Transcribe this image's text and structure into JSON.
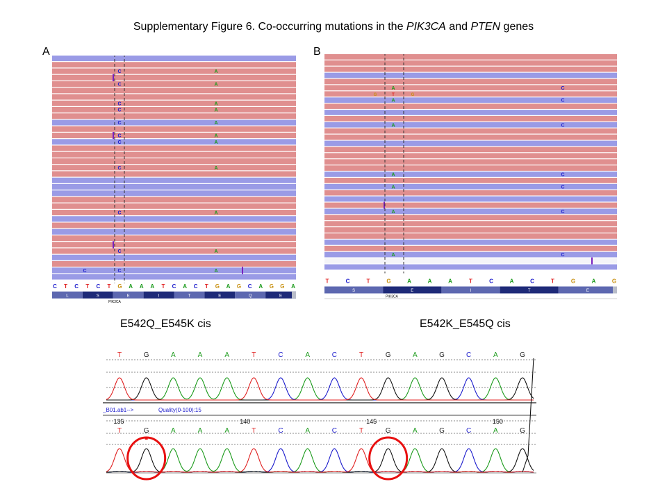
{
  "figure": {
    "title_prefix": "Supplementary Figure 6. Co-occurring mutations in the ",
    "gene1": "PIK3CA",
    "title_mid": " and ",
    "gene2": "PTEN",
    "title_suffix": " genes"
  },
  "panel_a": {
    "letter": "A",
    "caption": "E542Q_E545K cis",
    "mutant_base_left": "C",
    "mutant_base_right": "A",
    "reads": [
      {
        "c": "b"
      },
      {
        "c": "r"
      },
      {
        "c": "r",
        "L": "C",
        "R": "A"
      },
      {
        "c": "r",
        "i": true
      },
      {
        "c": "r",
        "L": "C",
        "R": "A"
      },
      {
        "c": "r"
      },
      {
        "c": "r"
      },
      {
        "c": "r",
        "L": "C",
        "R": "A"
      },
      {
        "c": "r",
        "L": "C",
        "R": "A"
      },
      {
        "c": "r"
      },
      {
        "c": "b",
        "L": "C",
        "R": "A"
      },
      {
        "c": "r"
      },
      {
        "c": "r",
        "i": true,
        "L": "C",
        "R": "A"
      },
      {
        "c": "b",
        "L": "C",
        "R": "A"
      },
      {
        "c": "r"
      },
      {
        "c": "r"
      },
      {
        "c": "r"
      },
      {
        "c": "r",
        "L": "C",
        "R": "A"
      },
      {
        "c": "r"
      },
      {
        "c": "b"
      },
      {
        "c": "b"
      },
      {
        "c": "b"
      },
      {
        "c": "r"
      },
      {
        "c": "r"
      },
      {
        "c": "r",
        "L": "C",
        "R": "A"
      },
      {
        "c": "b"
      },
      {
        "c": "r"
      },
      {
        "c": "b"
      },
      {
        "c": "r"
      },
      {
        "c": "r",
        "i": true
      },
      {
        "c": "r",
        "L": "C",
        "R": "A"
      },
      {
        "c": "b"
      },
      {
        "c": "r"
      },
      {
        "c": "b",
        "L": "C",
        "R": "A",
        "X": "C",
        "I2": true
      },
      {
        "c": "b"
      }
    ],
    "sequence": [
      "C",
      "T",
      "C",
      "T",
      "C",
      "T",
      "G",
      "A",
      "A",
      "A",
      "T",
      "C",
      "A",
      "C",
      "T",
      "G",
      "A",
      "G",
      "C",
      "A",
      "G",
      "G",
      "A"
    ],
    "amino_acids": [
      "L",
      "S",
      "E",
      "I",
      "T",
      "E",
      "Q",
      "E"
    ],
    "gene_label": "PIK3CA"
  },
  "panel_b": {
    "letter": "B",
    "caption": "E542K_E545Q cis",
    "mutant_base_left": "A",
    "mutant_base_right": "C",
    "reads": [
      {
        "c": "r"
      },
      {
        "c": "r"
      },
      {
        "c": "r"
      },
      {
        "c": "b"
      },
      {
        "c": "r"
      },
      {
        "c": "r",
        "L": "A",
        "R": "C"
      },
      {
        "c": "r",
        "G": true
      },
      {
        "c": "b",
        "L": "A",
        "R": "C"
      },
      {
        "c": "r"
      },
      {
        "c": "b"
      },
      {
        "c": "r"
      },
      {
        "c": "b",
        "L": "A",
        "R": "C"
      },
      {
        "c": "r"
      },
      {
        "c": "r"
      },
      {
        "c": "b"
      },
      {
        "c": "r"
      },
      {
        "c": "r"
      },
      {
        "c": "r"
      },
      {
        "c": "r"
      },
      {
        "c": "b",
        "L": "A",
        "R": "C"
      },
      {
        "c": "r"
      },
      {
        "c": "b",
        "L": "A",
        "R": "C"
      },
      {
        "c": "r"
      },
      {
        "c": "b"
      },
      {
        "c": "r",
        "i": true
      },
      {
        "c": "b",
        "L": "A",
        "R": "C"
      },
      {
        "c": "r"
      },
      {
        "c": "r"
      },
      {
        "c": "r"
      },
      {
        "c": "r"
      },
      {
        "c": "b"
      },
      {
        "c": "r"
      },
      {
        "c": "b",
        "L": "A",
        "R": "C"
      },
      {
        "c": "w",
        "I2": true
      },
      {
        "c": "b"
      }
    ],
    "sequence": [
      "T",
      "C",
      "T",
      "G",
      "A",
      "A",
      "A",
      "T",
      "C",
      "A",
      "C",
      "T",
      "G",
      "A",
      "G"
    ],
    "amino_acids": [
      "S",
      "E",
      "I",
      "T",
      "E"
    ],
    "gene_label": "PIK3CA"
  },
  "chromatogram": {
    "top_bases": [
      "T",
      "G",
      "A",
      "A",
      "A",
      "T",
      "C",
      "A",
      "C",
      "T",
      "G",
      "A",
      "G",
      "C",
      "A",
      "G"
    ],
    "file_label": "_B01.ab1-->",
    "quality_label": "Quality(0-100):15",
    "positions": [
      {
        "label": "135",
        "at": 0.0
      },
      {
        "label": "140",
        "at": 0.3
      },
      {
        "label": "145",
        "at": 0.6
      },
      {
        "label": "150",
        "at": 0.9
      }
    ],
    "bottom_bases": [
      "T",
      "G",
      "A",
      "A",
      "A",
      "T",
      "C",
      "A",
      "C",
      "T",
      "G",
      "A",
      "G",
      "C",
      "A",
      "G"
    ],
    "highlighted_positions": [
      1,
      10
    ]
  },
  "colors": {
    "read_forward": "#e08f8f",
    "read_reverse": "#9a9be6",
    "trace_A": "#1a9a1a",
    "trace_C": "#1a1acc",
    "trace_G": "#111111",
    "trace_T": "#e02020",
    "highlight_circle": "#e81010",
    "aa_track_dark": "#1e2a78",
    "aa_track_light": "#5d68b0"
  }
}
